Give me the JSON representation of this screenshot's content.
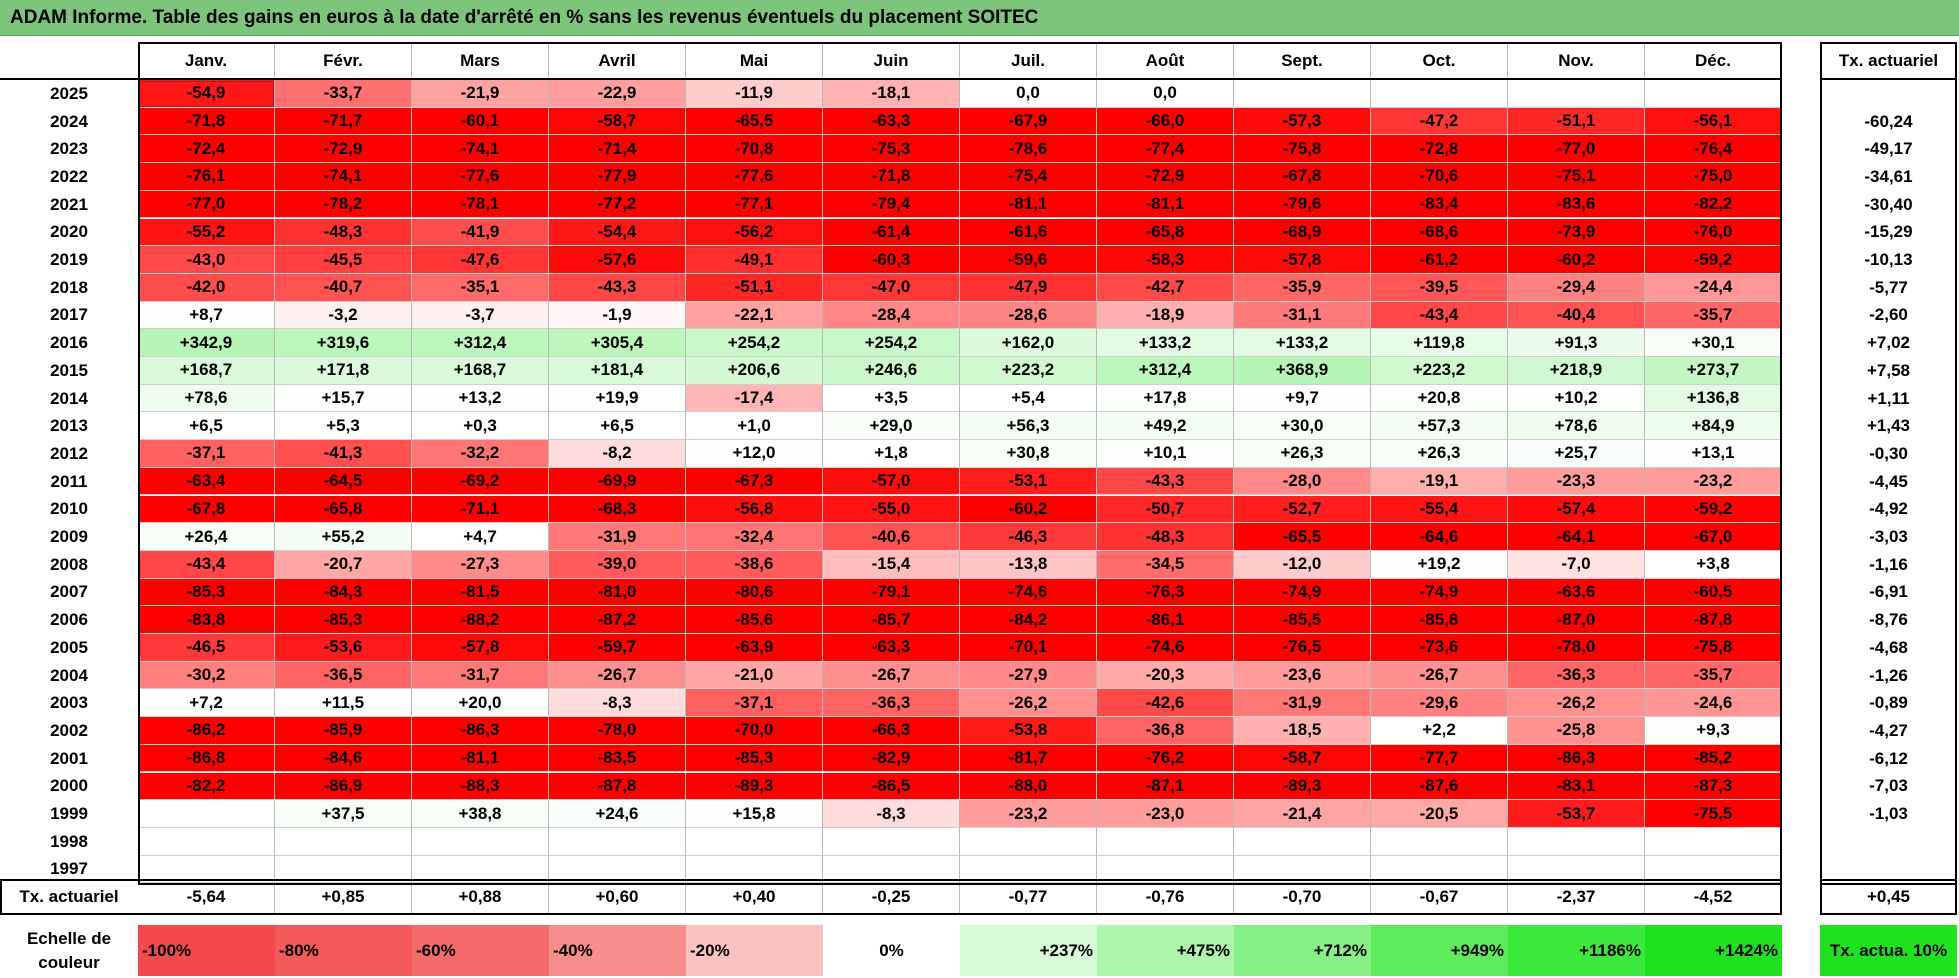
{
  "title": "ADAM Informe. Table des gains en euros à la date d'arrêté en % sans les revenus éventuels du placement SOITEC",
  "chart_data": {
    "type": "heatmap",
    "title": "ADAM Informe. Table des gains en euros à la date d'arrêté en % sans les revenus éventuels du placement SOITEC",
    "columns": [
      "Janv.",
      "Févr.",
      "Mars",
      "Avril",
      "Mai",
      "Juin",
      "Juil.",
      "Août",
      "Sept.",
      "Oct.",
      "Nov.",
      "Déc."
    ],
    "rate_header": "Tx. actuariel",
    "rows": [
      {
        "year": "2025",
        "values": [
          "-54,9",
          "-33,7",
          "-21,9",
          "-22,9",
          "-11,9",
          "-18,1",
          "0,0",
          "0,0",
          "",
          "",
          "",
          ""
        ],
        "rate": ""
      },
      {
        "year": "2024",
        "values": [
          "-71,8",
          "-71,7",
          "-60,1",
          "-58,7",
          "-65,5",
          "-63,3",
          "-67,9",
          "-66,0",
          "-57,3",
          "-47,2",
          "-51,1",
          "-56,1"
        ],
        "rate": "-60,24"
      },
      {
        "year": "2023",
        "values": [
          "-72,4",
          "-72,9",
          "-74,1",
          "-71,4",
          "-70,8",
          "-75,3",
          "-78,6",
          "-77,4",
          "-75,8",
          "-72,8",
          "-77,0",
          "-76,4"
        ],
        "rate": "-49,17"
      },
      {
        "year": "2022",
        "values": [
          "-76,1",
          "-74,1",
          "-77,6",
          "-77,9",
          "-77,6",
          "-71,8",
          "-75,4",
          "-72,9",
          "-67,8",
          "-70,6",
          "-75,1",
          "-75,0"
        ],
        "rate": "-34,61"
      },
      {
        "year": "2021",
        "values": [
          "-77,0",
          "-78,2",
          "-78,1",
          "-77,2",
          "-77,1",
          "-79,4",
          "-81,1",
          "-81,1",
          "-79,6",
          "-83,4",
          "-83,6",
          "-82,2"
        ],
        "rate": "-30,40"
      },
      {
        "year": "2020",
        "values": [
          "-55,2",
          "-48,3",
          "-41,9",
          "-54,4",
          "-56,2",
          "-61,4",
          "-61,6",
          "-65,8",
          "-68,9",
          "-68,6",
          "-73,9",
          "-76,0"
        ],
        "rate": "-15,29"
      },
      {
        "year": "2019",
        "values": [
          "-43,0",
          "-45,5",
          "-47,6",
          "-57,6",
          "-49,1",
          "-60,3",
          "-59,6",
          "-58,3",
          "-57,8",
          "-61,2",
          "-60,2",
          "-59,2"
        ],
        "rate": "-10,13"
      },
      {
        "year": "2018",
        "values": [
          "-42,0",
          "-40,7",
          "-35,1",
          "-43,3",
          "-51,1",
          "-47,0",
          "-47,9",
          "-42,7",
          "-35,9",
          "-39,5",
          "-29,4",
          "-24,4"
        ],
        "rate": "-5,77"
      },
      {
        "year": "2017",
        "values": [
          "+8,7",
          "-3,2",
          "-3,7",
          "-1,9",
          "-22,1",
          "-28,4",
          "-28,6",
          "-18,9",
          "-31,1",
          "-43,4",
          "-40,4",
          "-35,7"
        ],
        "rate": "-2,60"
      },
      {
        "year": "2016",
        "values": [
          "+342,9",
          "+319,6",
          "+312,4",
          "+305,4",
          "+254,2",
          "+254,2",
          "+162,0",
          "+133,2",
          "+133,2",
          "+119,8",
          "+91,3",
          "+30,1"
        ],
        "rate": "+7,02"
      },
      {
        "year": "2015",
        "values": [
          "+168,7",
          "+171,8",
          "+168,7",
          "+181,4",
          "+206,6",
          "+246,6",
          "+223,2",
          "+312,4",
          "+368,9",
          "+223,2",
          "+218,9",
          "+273,7"
        ],
        "rate": "+7,58"
      },
      {
        "year": "2014",
        "values": [
          "+78,6",
          "+15,7",
          "+13,2",
          "+19,9",
          "-17,4",
          "+3,5",
          "+5,4",
          "+17,8",
          "+9,7",
          "+20,8",
          "+10,2",
          "+136,8"
        ],
        "rate": "+1,11"
      },
      {
        "year": "2013",
        "values": [
          "+6,5",
          "+5,3",
          "+0,3",
          "+6,5",
          "+1,0",
          "+29,0",
          "+56,3",
          "+49,2",
          "+30,0",
          "+57,3",
          "+78,6",
          "+84,9"
        ],
        "rate": "+1,43"
      },
      {
        "year": "2012",
        "values": [
          "-37,1",
          "-41,3",
          "-32,2",
          "-8,2",
          "+12,0",
          "+1,8",
          "+30,8",
          "+10,1",
          "+26,3",
          "+26,3",
          "+25,7",
          "+13,1"
        ],
        "rate": "-0,30"
      },
      {
        "year": "2011",
        "values": [
          "-63,4",
          "-64,5",
          "-69,2",
          "-69,9",
          "-67,3",
          "-57,0",
          "-53,1",
          "-43,3",
          "-28,0",
          "-19,1",
          "-23,3",
          "-23,2"
        ],
        "rate": "-4,45"
      },
      {
        "year": "2010",
        "values": [
          "-67,8",
          "-65,8",
          "-71,1",
          "-68,3",
          "-56,8",
          "-55,0",
          "-60,2",
          "-50,7",
          "-52,7",
          "-55,4",
          "-57,4",
          "-59,2"
        ],
        "rate": "-4,92"
      },
      {
        "year": "2009",
        "values": [
          "+26,4",
          "+55,2",
          "+4,7",
          "-31,9",
          "-32,4",
          "-40,6",
          "-46,3",
          "-48,3",
          "-65,5",
          "-64,6",
          "-64,1",
          "-67,0"
        ],
        "rate": "-3,03"
      },
      {
        "year": "2008",
        "values": [
          "-43,4",
          "-20,7",
          "-27,3",
          "-39,0",
          "-38,6",
          "-15,4",
          "-13,8",
          "-34,5",
          "-12,0",
          "+19,2",
          "-7,0",
          "+3,8"
        ],
        "rate": "-1,16"
      },
      {
        "year": "2007",
        "values": [
          "-85,3",
          "-84,3",
          "-81,5",
          "-81,0",
          "-80,6",
          "-79,1",
          "-74,6",
          "-76,3",
          "-74,9",
          "-74,9",
          "-63,6",
          "-60,5"
        ],
        "rate": "-6,91"
      },
      {
        "year": "2006",
        "values": [
          "-83,8",
          "-85,3",
          "-88,2",
          "-87,2",
          "-85,6",
          "-85,7",
          "-84,2",
          "-86,1",
          "-85,5",
          "-85,8",
          "-87,0",
          "-87,8"
        ],
        "rate": "-8,76"
      },
      {
        "year": "2005",
        "values": [
          "-46,5",
          "-53,6",
          "-57,8",
          "-59,7",
          "-63,9",
          "-63,3",
          "-70,1",
          "-74,6",
          "-76,5",
          "-73,6",
          "-78,0",
          "-75,8"
        ],
        "rate": "-4,68"
      },
      {
        "year": "2004",
        "values": [
          "-30,2",
          "-36,5",
          "-31,7",
          "-26,7",
          "-21,0",
          "-26,7",
          "-27,9",
          "-20,3",
          "-23,6",
          "-26,7",
          "-36,3",
          "-35,7"
        ],
        "rate": "-1,26"
      },
      {
        "year": "2003",
        "values": [
          "+7,2",
          "+11,5",
          "+20,0",
          "-8,3",
          "-37,1",
          "-36,3",
          "-26,2",
          "-42,6",
          "-31,9",
          "-29,6",
          "-26,2",
          "-24,6"
        ],
        "rate": "-0,89"
      },
      {
        "year": "2002",
        "values": [
          "-86,2",
          "-85,9",
          "-86,3",
          "-78,0",
          "-70,0",
          "-66,3",
          "-53,8",
          "-36,8",
          "-18,5",
          "+2,2",
          "-25,8",
          "+9,3"
        ],
        "rate": "-4,27"
      },
      {
        "year": "2001",
        "values": [
          "-86,8",
          "-84,6",
          "-81,1",
          "-83,5",
          "-85,3",
          "-82,9",
          "-81,7",
          "-76,2",
          "-58,7",
          "-77,7",
          "-86,3",
          "-85,2"
        ],
        "rate": "-6,12"
      },
      {
        "year": "2000",
        "values": [
          "-82,2",
          "-86,9",
          "-88,3",
          "-87,8",
          "-89,3",
          "-86,5",
          "-88,0",
          "-87,1",
          "-89,3",
          "-87,6",
          "-83,1",
          "-87,3"
        ],
        "rate": "-7,03"
      },
      {
        "year": "1999",
        "values": [
          "",
          "+37,5",
          "+38,8",
          "+24,6",
          "+15,8",
          "-8,3",
          "-23,2",
          "-23,0",
          "-21,4",
          "-20,5",
          "-53,7",
          "-75,5"
        ],
        "rate": "-1,03"
      },
      {
        "year": "1998",
        "values": [
          "",
          "",
          "",
          "",
          "",
          "",
          "",
          "",
          "",
          "",
          "",
          ""
        ],
        "rate": ""
      },
      {
        "year": "1997",
        "values": [
          "",
          "",
          "",
          "",
          "",
          "",
          "",
          "",
          "",
          "",
          "",
          ""
        ],
        "rate": ""
      }
    ],
    "summary_row": {
      "label": "Tx. actuariel",
      "values": [
        "-5,64",
        "+0,85",
        "+0,88",
        "+0,60",
        "+0,40",
        "-0,25",
        "-0,77",
        "-0,76",
        "-0,70",
        "-0,67",
        "-2,37",
        "-4,52"
      ],
      "rate": "+0,45"
    },
    "color_scale": {
      "label": "Echelle de couleur",
      "stops": [
        {
          "label": "-100%",
          "color": "#f24a4a"
        },
        {
          "label": "-80%",
          "color": "#f45a5a"
        },
        {
          "label": "-60%",
          "color": "#f56b6b"
        },
        {
          "label": "-40%",
          "color": "#f78d8d"
        },
        {
          "label": "-20%",
          "color": "#fbc2c2"
        },
        {
          "label": "0%",
          "color": "#ffffff"
        },
        {
          "label": "+237%",
          "color": "#d7fad7"
        },
        {
          "label": "+475%",
          "color": "#aef5ae"
        },
        {
          "label": "+712%",
          "color": "#86f086"
        },
        {
          "label": "+949%",
          "color": "#5eec5e"
        },
        {
          "label": "+1186%",
          "color": "#3ce83c"
        },
        {
          "label": "+1424%",
          "color": "#1fe21f"
        }
      ],
      "extra": {
        "label": "Tx. actua. 10%",
        "color": "#1fe21f"
      }
    },
    "colors": {
      "title_bar": "#7dc57d",
      "negative_max": "#ff0000",
      "positive_max": "#b5f5b5"
    }
  }
}
